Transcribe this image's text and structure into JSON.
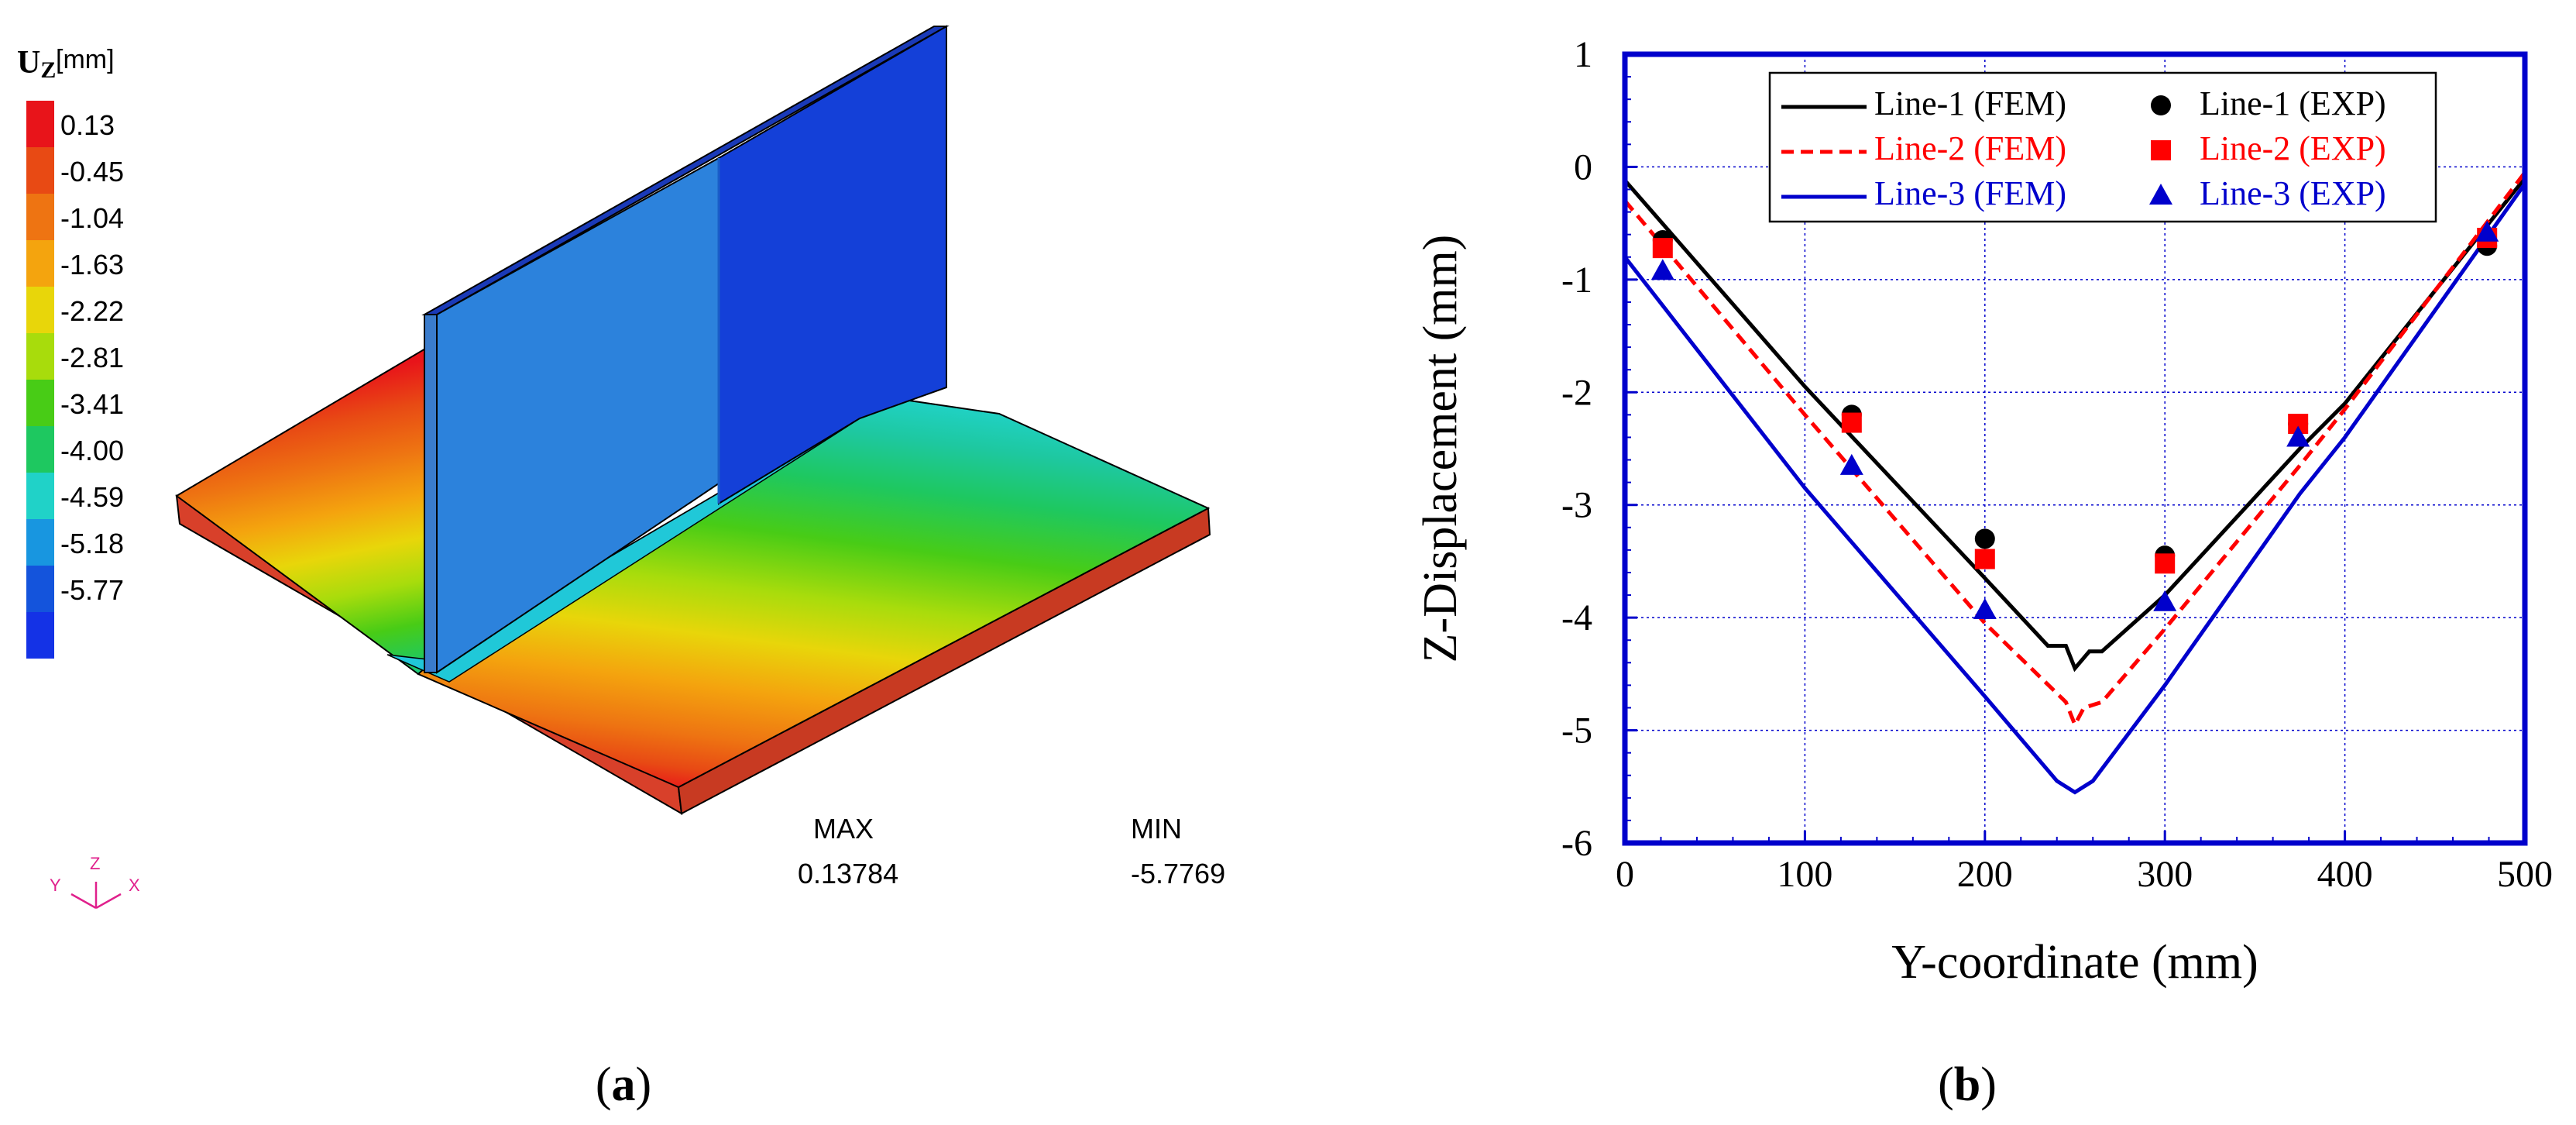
{
  "panel_a": {
    "legend_title": "U",
    "legend_title_sub": "Z",
    "legend_unit": "[mm]",
    "legend_values": [
      "0.13",
      "-0.45",
      "-1.04",
      "-1.63",
      "-2.22",
      "-2.81",
      "-3.41",
      "-4.00",
      "-4.59",
      "-5.18",
      "-5.77"
    ],
    "legend_colors": [
      "#e8141a",
      "#e84a14",
      "#ee7412",
      "#f4a40e",
      "#e8d60a",
      "#a8dc0c",
      "#48cc16",
      "#1ec860",
      "#20d2c8",
      "#1896e0",
      "#1454dc",
      "#1432e6"
    ],
    "max_label": "MAX",
    "max_value": "0.13784",
    "min_label": "MIN",
    "min_value": "-5.7769",
    "axis_triad": {
      "y": "Y",
      "z": "Z",
      "x": "X"
    },
    "caption": "a"
  },
  "chart_data": {
    "type": "line",
    "xlabel": "Y-coordinate (mm)",
    "ylabel": "Z-Displacement (mm)",
    "xlim": [
      0,
      500
    ],
    "ylim": [
      -6,
      1
    ],
    "xticks": [
      0,
      100,
      200,
      300,
      400,
      500
    ],
    "yticks": [
      1,
      0,
      -1,
      -2,
      -3,
      -4,
      -5,
      -6
    ],
    "grid": true,
    "legend_position": "top",
    "series": [
      {
        "name": "Line-1 (FEM)",
        "kind": "line",
        "color": "#000000",
        "dash": "solid",
        "x": [
          0,
          100,
          200,
          235,
          245,
          250,
          258,
          265,
          300,
          375,
          400,
          500
        ],
        "y": [
          -0.12,
          -1.95,
          -3.65,
          -4.25,
          -4.25,
          -4.45,
          -4.3,
          -4.3,
          -3.8,
          -2.5,
          -2.1,
          -0.1
        ]
      },
      {
        "name": "Line-2 (FEM)",
        "kind": "line",
        "color": "#ff0000",
        "dash": "dashed",
        "x": [
          0,
          100,
          200,
          245,
          250,
          255,
          265,
          300,
          375,
          400,
          500
        ],
        "y": [
          -0.3,
          -2.2,
          -4.05,
          -4.75,
          -4.95,
          -4.8,
          -4.75,
          -4.1,
          -2.65,
          -2.15,
          -0.05
        ]
      },
      {
        "name": "Line-3 (FEM)",
        "kind": "line",
        "color": "#0000cc",
        "dash": "solid",
        "x": [
          0,
          100,
          200,
          240,
          245,
          250,
          255,
          260,
          300,
          375,
          400,
          500
        ],
        "y": [
          -0.8,
          -2.85,
          -4.7,
          -5.45,
          -5.5,
          -5.55,
          -5.5,
          -5.45,
          -4.6,
          -2.9,
          -2.4,
          -0.15
        ]
      },
      {
        "name": "Line-1 (EXP)",
        "kind": "marker",
        "marker": "circle",
        "color": "#000000",
        "x": [
          21,
          126,
          200,
          300,
          374,
          479
        ],
        "y": [
          -0.65,
          -2.2,
          -3.3,
          -3.45,
          -2.28,
          -0.7
        ]
      },
      {
        "name": "Line-2 (EXP)",
        "kind": "marker",
        "marker": "square",
        "color": "#ff0000",
        "x": [
          21,
          126,
          200,
          300,
          374,
          479
        ],
        "y": [
          -0.72,
          -2.27,
          -3.48,
          -3.52,
          -2.28,
          -0.63
        ]
      },
      {
        "name": "Line-3 (EXP)",
        "kind": "marker",
        "marker": "triangle",
        "color": "#0000cc",
        "x": [
          21,
          126,
          200,
          300,
          374,
          479
        ],
        "y": [
          -0.92,
          -2.65,
          -3.93,
          -3.86,
          -2.4,
          -0.58
        ]
      }
    ],
    "caption": "b"
  }
}
